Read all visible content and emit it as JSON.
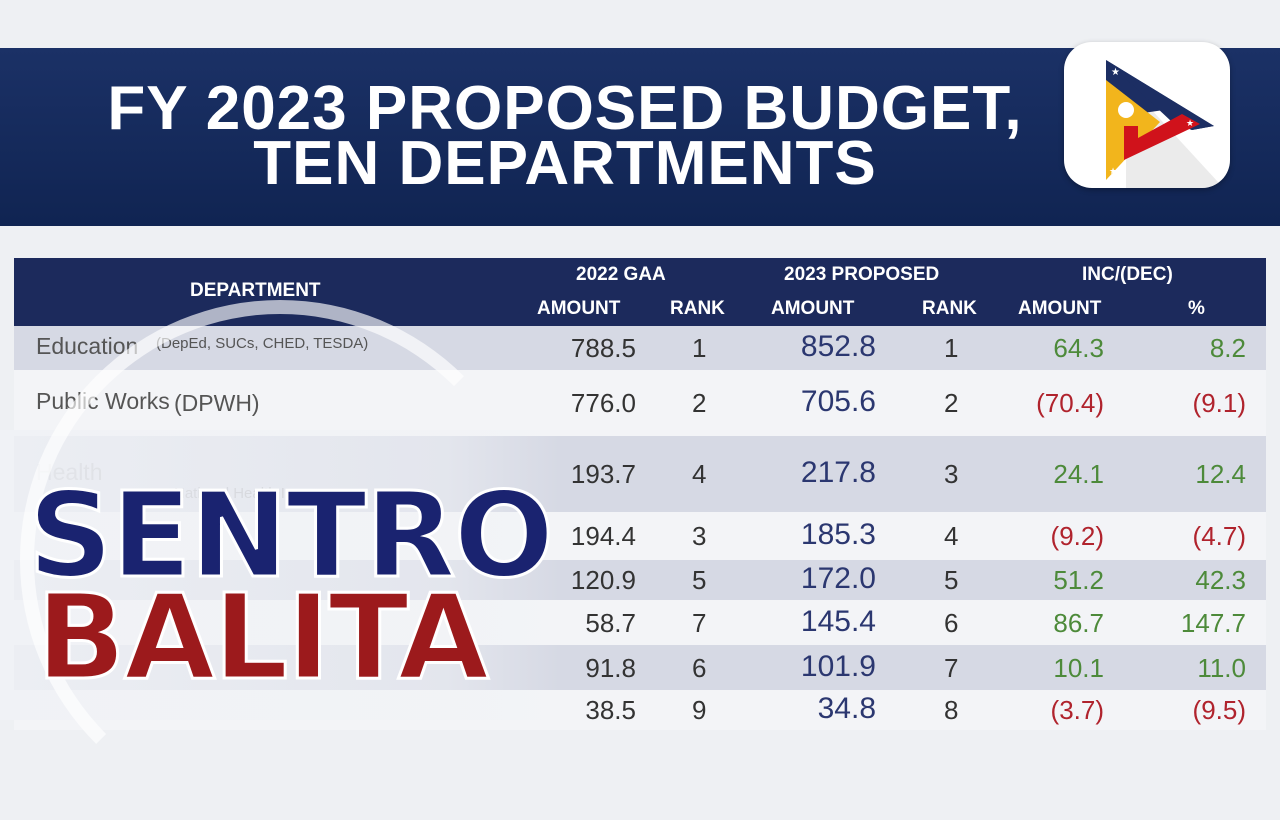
{
  "title": {
    "line1": "FY 2023 PROPOSED BUDGET,",
    "line2": "TEN DEPARTMENTS"
  },
  "logo": {
    "name": "ptv-logo",
    "colors": {
      "navy": "#1c2e63",
      "yellow": "#f2b51c",
      "red": "#d0121b"
    }
  },
  "show_title": {
    "line1": "SENTRO",
    "line2": "BALITA",
    "colors": {
      "sentro": "#1a2370",
      "balita": "#9c1a1c"
    }
  },
  "table": {
    "headers": {
      "department": "DEPARTMENT",
      "gaa_2022": "2022 GAA",
      "proposed_2023": "2023 PROPOSED",
      "inc_dec": "INC/(DEC)",
      "amount": "AMOUNT",
      "rank": "RANK",
      "pct": "%"
    },
    "rows": [
      {
        "dept": "Education",
        "dept_note": "(DepEd, SUCs, CHED, TESDA)",
        "gaa_amount": "788.5",
        "gaa_rank": "1",
        "prop_amount": "852.8",
        "prop_rank": "1",
        "inc_amount": "64.3",
        "inc_pct": "8.2",
        "trend": "up"
      },
      {
        "dept": "Public Works",
        "dept_note": "(DPWH)",
        "gaa_amount": "776.0",
        "gaa_rank": "2",
        "prop_amount": "705.6",
        "prop_rank": "2",
        "inc_amount": "(70.4)",
        "inc_pct": "(9.1)",
        "trend": "down"
      },
      {
        "dept": "Health",
        "dept_note": "National Health Insurance",
        "gaa_amount": "193.7",
        "gaa_rank": "4",
        "prop_amount": "217.8",
        "prop_rank": "3",
        "inc_amount": "24.1",
        "inc_pct": "12.4",
        "trend": "up"
      },
      {
        "gaa_amount": "194.4",
        "gaa_rank": "3",
        "prop_amount": "185.3",
        "prop_rank": "4",
        "inc_amount": "(9.2)",
        "inc_pct": "(4.7)",
        "trend": "down"
      },
      {
        "gaa_amount": "120.9",
        "gaa_rank": "5",
        "prop_amount": "172.0",
        "prop_rank": "5",
        "inc_amount": "51.2",
        "inc_pct": "42.3",
        "trend": "up"
      },
      {
        "gaa_amount": "58.7",
        "gaa_rank": "7",
        "prop_amount": "145.4",
        "prop_rank": "6",
        "inc_amount": "86.7",
        "inc_pct": "147.7",
        "trend": "up"
      },
      {
        "gaa_amount": "91.8",
        "gaa_rank": "6",
        "prop_amount": "101.9",
        "prop_rank": "7",
        "inc_amount": "10.1",
        "inc_pct": "11.0",
        "trend": "up"
      },
      {
        "gaa_amount": "38.5",
        "gaa_rank": "9",
        "prop_amount": "34.8",
        "prop_rank": "8",
        "inc_amount": "(3.7)",
        "inc_pct": "(9.5)",
        "trend": "down"
      }
    ]
  }
}
